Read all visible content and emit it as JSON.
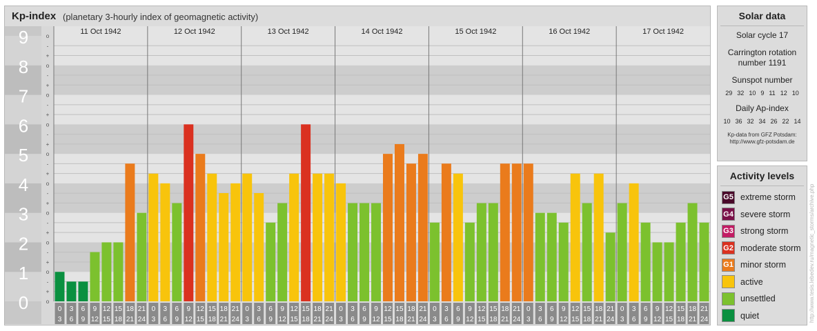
{
  "header": {
    "title": "Kp-index",
    "subtitle": "(planetary 3-hourly index of geomagnetic activity)"
  },
  "chart_data": {
    "type": "bar",
    "ylim": [
      0,
      9
    ],
    "y_major_labels": [
      "0",
      "1",
      "2",
      "3",
      "4",
      "5",
      "6",
      "7",
      "8",
      "9"
    ],
    "y_minor_labels": [
      "o",
      "+",
      "-"
    ],
    "days": [
      "11 Oct 1942",
      "12 Oct 1942",
      "13 Oct 1942",
      "14 Oct 1942",
      "15 Oct 1942",
      "16 Oct 1942",
      "17 Oct 1942"
    ],
    "interval_labels": [
      [
        "0",
        "3"
      ],
      [
        "3",
        "6"
      ],
      [
        "6",
        "9"
      ],
      [
        "9",
        "12"
      ],
      [
        "12",
        "15"
      ],
      [
        "15",
        "18"
      ],
      [
        "18",
        "21"
      ],
      [
        "21",
        "24"
      ]
    ],
    "values": [
      [
        1.0,
        0.67,
        0.67,
        1.67,
        2.0,
        2.0,
        4.67,
        3.0
      ],
      [
        4.33,
        4.0,
        3.33,
        6.0,
        5.0,
        4.33,
        3.67,
        4.0
      ],
      [
        4.33,
        3.67,
        2.67,
        3.33,
        4.33,
        6.0,
        4.33,
        4.33
      ],
      [
        4.0,
        3.33,
        3.33,
        3.33,
        5.0,
        5.33,
        4.67,
        5.0
      ],
      [
        2.67,
        4.67,
        4.33,
        2.67,
        3.33,
        3.33,
        4.67,
        4.67
      ],
      [
        4.67,
        3.0,
        3.0,
        2.67,
        4.33,
        3.33,
        4.33,
        2.33
      ],
      [
        3.33,
        4.0,
        2.67,
        2.0,
        2.0,
        2.67,
        3.33,
        2.67
      ]
    ],
    "colors": {
      "quiet": "#0a9040",
      "unsettled": "#7cc12e",
      "active": "#f8c40c",
      "minor": "#ea7b1c",
      "moderate": "#da3120"
    }
  },
  "solar": {
    "title": "Solar data",
    "cycle": "Solar cycle 17",
    "carrington_1": "Carrington rotation",
    "carrington_2": "number 1191",
    "sunspot_title": "Sunspot number",
    "sunspot_values": [
      "29",
      "32",
      "10",
      "9",
      "11",
      "12",
      "10"
    ],
    "ap_title": "Daily Ap-index",
    "ap_values": [
      "10",
      "36",
      "32",
      "34",
      "26",
      "22",
      "14"
    ],
    "credit_1": "Kp-data from GFZ Potsdam:",
    "credit_2": "http://www.gfz-potsdam.de"
  },
  "activity": {
    "title": "Activity levels",
    "levels": [
      {
        "code": "G5",
        "label": "extreme storm",
        "color": "#4a0a2a"
      },
      {
        "code": "G4",
        "label": "severe storm",
        "color": "#7a1048"
      },
      {
        "code": "G3",
        "label": "strong storm",
        "color": "#c21c64"
      },
      {
        "code": "G2",
        "label": "moderate storm",
        "color": "#da3120"
      },
      {
        "code": "G1",
        "label": "minor storm",
        "color": "#ea7b1c"
      },
      {
        "code": "",
        "label": "active",
        "color": "#f8c40c"
      },
      {
        "code": "",
        "label": "unsettled",
        "color": "#7cc12e"
      },
      {
        "code": "",
        "label": "quiet",
        "color": "#0a9040"
      }
    ]
  },
  "watermark": "http://www.tesis.lebedev.ru/magnetic_storms/archive.php"
}
